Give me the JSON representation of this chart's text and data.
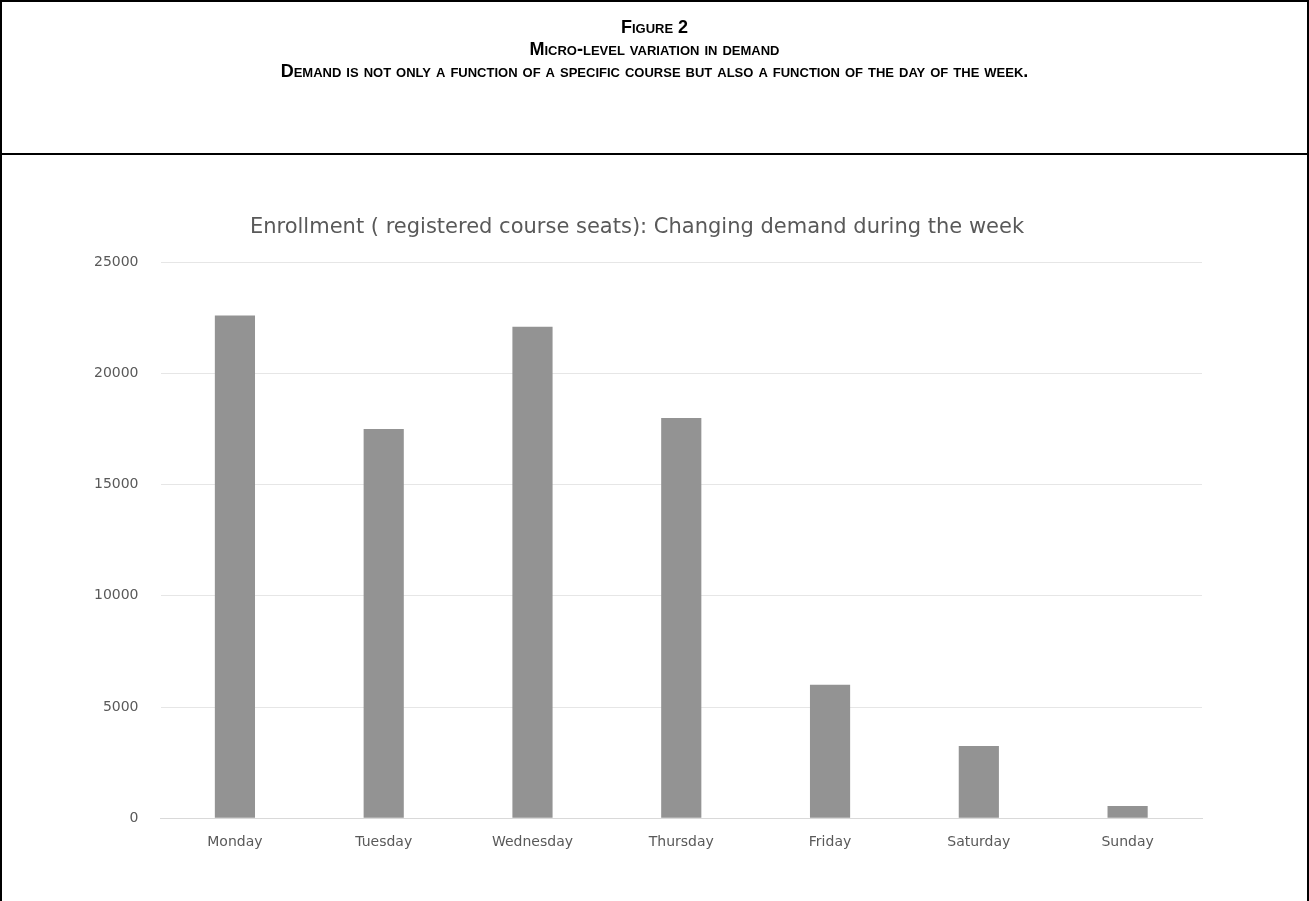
{
  "chart_data": {
    "type": "bar",
    "title": "Enrollment ( registered course seats): Changing demand during the week",
    "annotations": [
      "Figure 2",
      "Micro-level variation in demand",
      "Demand is not only a function of a specific course but also a function of the day of the week."
    ],
    "categories": [
      "Monday",
      "Tuesday",
      "Wednesday",
      "Thursday",
      "Friday",
      "Saturday",
      "Sunday"
    ],
    "values": [
      22600,
      17500,
      22100,
      18000,
      6000,
      3250,
      550
    ],
    "color": "#939393",
    "ylim": [
      0,
      25000
    ],
    "yticks": [
      0,
      5000,
      10000,
      15000,
      20000,
      25000
    ],
    "grid": "y",
    "legend": false
  }
}
